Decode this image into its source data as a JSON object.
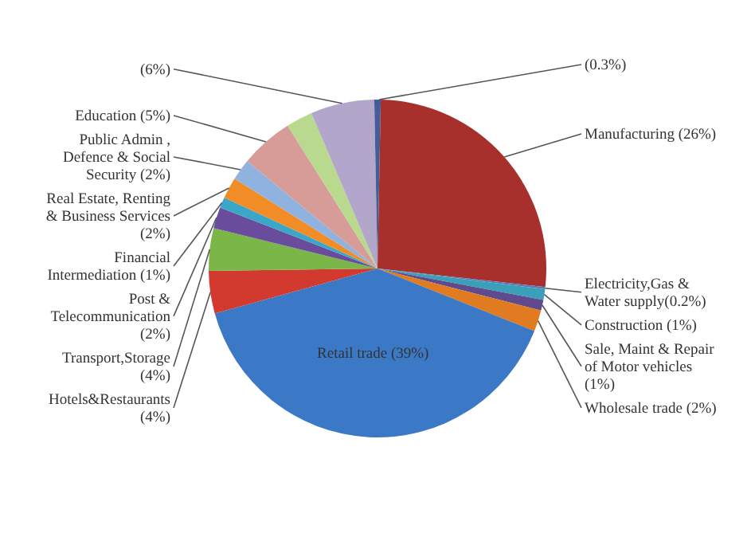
{
  "chart_data": {
    "type": "pie",
    "categories": [
      "(0.3%)",
      "Manufacturing (26%)",
      "Electricity,Gas & Water supply(0.2%)",
      "Construction (1%)",
      "Sale, Maint & Repair of Motor vehicles (1%)",
      "Wholesale trade (2%)",
      "Retail trade (39%)",
      "Hotels&Restaurants (4%)",
      "Transport,Storage (4%)",
      "Post & Telecommunication (2%)",
      "Financial Intermediation (1%)",
      "Real Estate, Renting & Business Services (2%)",
      "Public Admin , Defence & Social Security (2%)",
      "Education (5%)",
      null,
      "(6%)",
      null
    ],
    "values": [
      0.3,
      26,
      0.2,
      1,
      1,
      2,
      39,
      4,
      4,
      2,
      1,
      2,
      2,
      5,
      2.5,
      6,
      0.3
    ],
    "colors": [
      "#3d5f9e",
      "#a8302c",
      "#5a7bb8",
      "#3a9fb8",
      "#5e4a8c",
      "#e07b22",
      "#3b78c6",
      "#d23a30",
      "#7ab648",
      "#6a4c9c",
      "#3aa6c8",
      "#f28c26",
      "#8fb2de",
      "#d79b98",
      "#b9d98f",
      "#b2a7cb",
      "#4a5c98"
    ]
  }
}
